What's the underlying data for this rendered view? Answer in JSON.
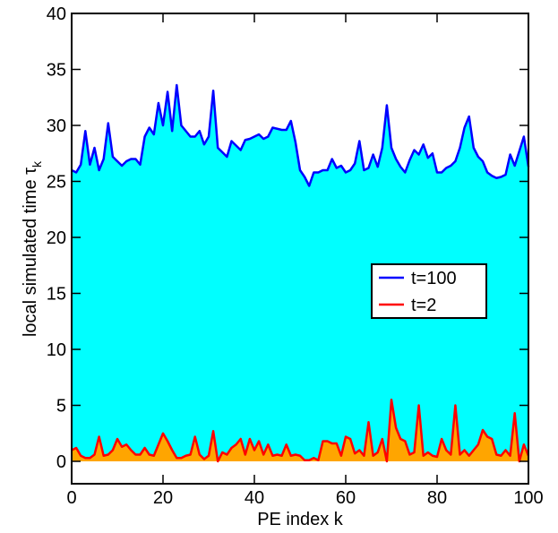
{
  "chart_data": {
    "type": "area",
    "xlabel": "PE index k",
    "ylabel": {
      "text": "local simulated time τ",
      "subscript": "k"
    },
    "x": [
      0,
      1,
      2,
      3,
      4,
      5,
      6,
      7,
      8,
      9,
      10,
      11,
      12,
      13,
      14,
      15,
      16,
      17,
      18,
      19,
      20,
      21,
      22,
      23,
      24,
      25,
      26,
      27,
      28,
      29,
      30,
      31,
      32,
      33,
      34,
      35,
      36,
      37,
      38,
      39,
      40,
      41,
      42,
      43,
      44,
      45,
      46,
      47,
      48,
      49,
      50,
      51,
      52,
      53,
      54,
      55,
      56,
      57,
      58,
      59,
      60,
      61,
      62,
      63,
      64,
      65,
      66,
      67,
      68,
      69,
      70,
      71,
      72,
      73,
      74,
      75,
      76,
      77,
      78,
      79,
      80,
      81,
      82,
      83,
      84,
      85,
      86,
      87,
      88,
      89,
      90,
      91,
      92,
      93,
      94,
      95,
      96,
      97,
      98,
      99,
      100
    ],
    "series": [
      {
        "name": "t=100",
        "color": "#0000ff",
        "fill": "#00ffff",
        "values": [
          26,
          25.8,
          26.5,
          29.5,
          26.5,
          28,
          26,
          27,
          30.2,
          27.2,
          26.8,
          26.4,
          26.8,
          27,
          27,
          26.5,
          29,
          29.8,
          29.2,
          32,
          30,
          33,
          29.5,
          33.6,
          30,
          29.5,
          29,
          29,
          29.5,
          28.3,
          29,
          33.1,
          28,
          27.6,
          27.2,
          28.6,
          28.2,
          27.8,
          28.7,
          28.8,
          29,
          29.2,
          28.8,
          29,
          29.8,
          29.7,
          29.6,
          29.6,
          30.4,
          28.5,
          26,
          25.4,
          24.6,
          25.8,
          25.8,
          26,
          26,
          27,
          26.2,
          26.4,
          25.8,
          26,
          26.6,
          28.6,
          26,
          26.2,
          27.4,
          26.3,
          28,
          31.8,
          28,
          27,
          26.3,
          25.8,
          26.9,
          27.8,
          27.4,
          28.3,
          27.1,
          27.5,
          25.8,
          25.8,
          26.2,
          26.4,
          26.8,
          28,
          29.8,
          30.8,
          28,
          27.2,
          26.8,
          25.8,
          25.5,
          25.3,
          25.4,
          25.6,
          27.4,
          26.4,
          27.7,
          29,
          26.3
        ]
      },
      {
        "name": "t=2",
        "color": "#ff0000",
        "fill": "#ffa500",
        "values": [
          1,
          1.2,
          0.5,
          0.3,
          0.3,
          0.6,
          2.2,
          0.5,
          0.6,
          1,
          2,
          1.3,
          1.5,
          1,
          0.6,
          0.6,
          1.2,
          0.6,
          0.5,
          1.5,
          2.5,
          1.8,
          1,
          0.3,
          0.3,
          0.5,
          0.6,
          2.2,
          0.6,
          0.2,
          0.5,
          2.7,
          0,
          0.8,
          0.6,
          1.2,
          1.5,
          2,
          0.6,
          2,
          1,
          1.8,
          0.6,
          1.5,
          0.5,
          0.6,
          0.5,
          1.5,
          0.5,
          0.6,
          0.5,
          0.1,
          0.1,
          0.3,
          0.1,
          1.8,
          1.8,
          1.6,
          1.6,
          0.5,
          2.2,
          2,
          0.7,
          1,
          0.5,
          3.5,
          0.5,
          0.8,
          2,
          0,
          5.5,
          3,
          2,
          1.8,
          0.6,
          0.8,
          5,
          0.5,
          0.8,
          0.5,
          0.4,
          2,
          1,
          0.6,
          5,
          0.6,
          1,
          0.5,
          1,
          1.5,
          2.8,
          2.2,
          2,
          0.6,
          0.5,
          1,
          0.5,
          4.3,
          0,
          1.5,
          0.5
        ]
      }
    ],
    "xlim": [
      0,
      100
    ],
    "xticks": [
      0,
      20,
      40,
      60,
      80,
      100
    ],
    "ylim": [
      -2,
      40
    ],
    "yticks": [
      0,
      5,
      10,
      15,
      20,
      25,
      30,
      35,
      40
    ],
    "legend": "right"
  }
}
